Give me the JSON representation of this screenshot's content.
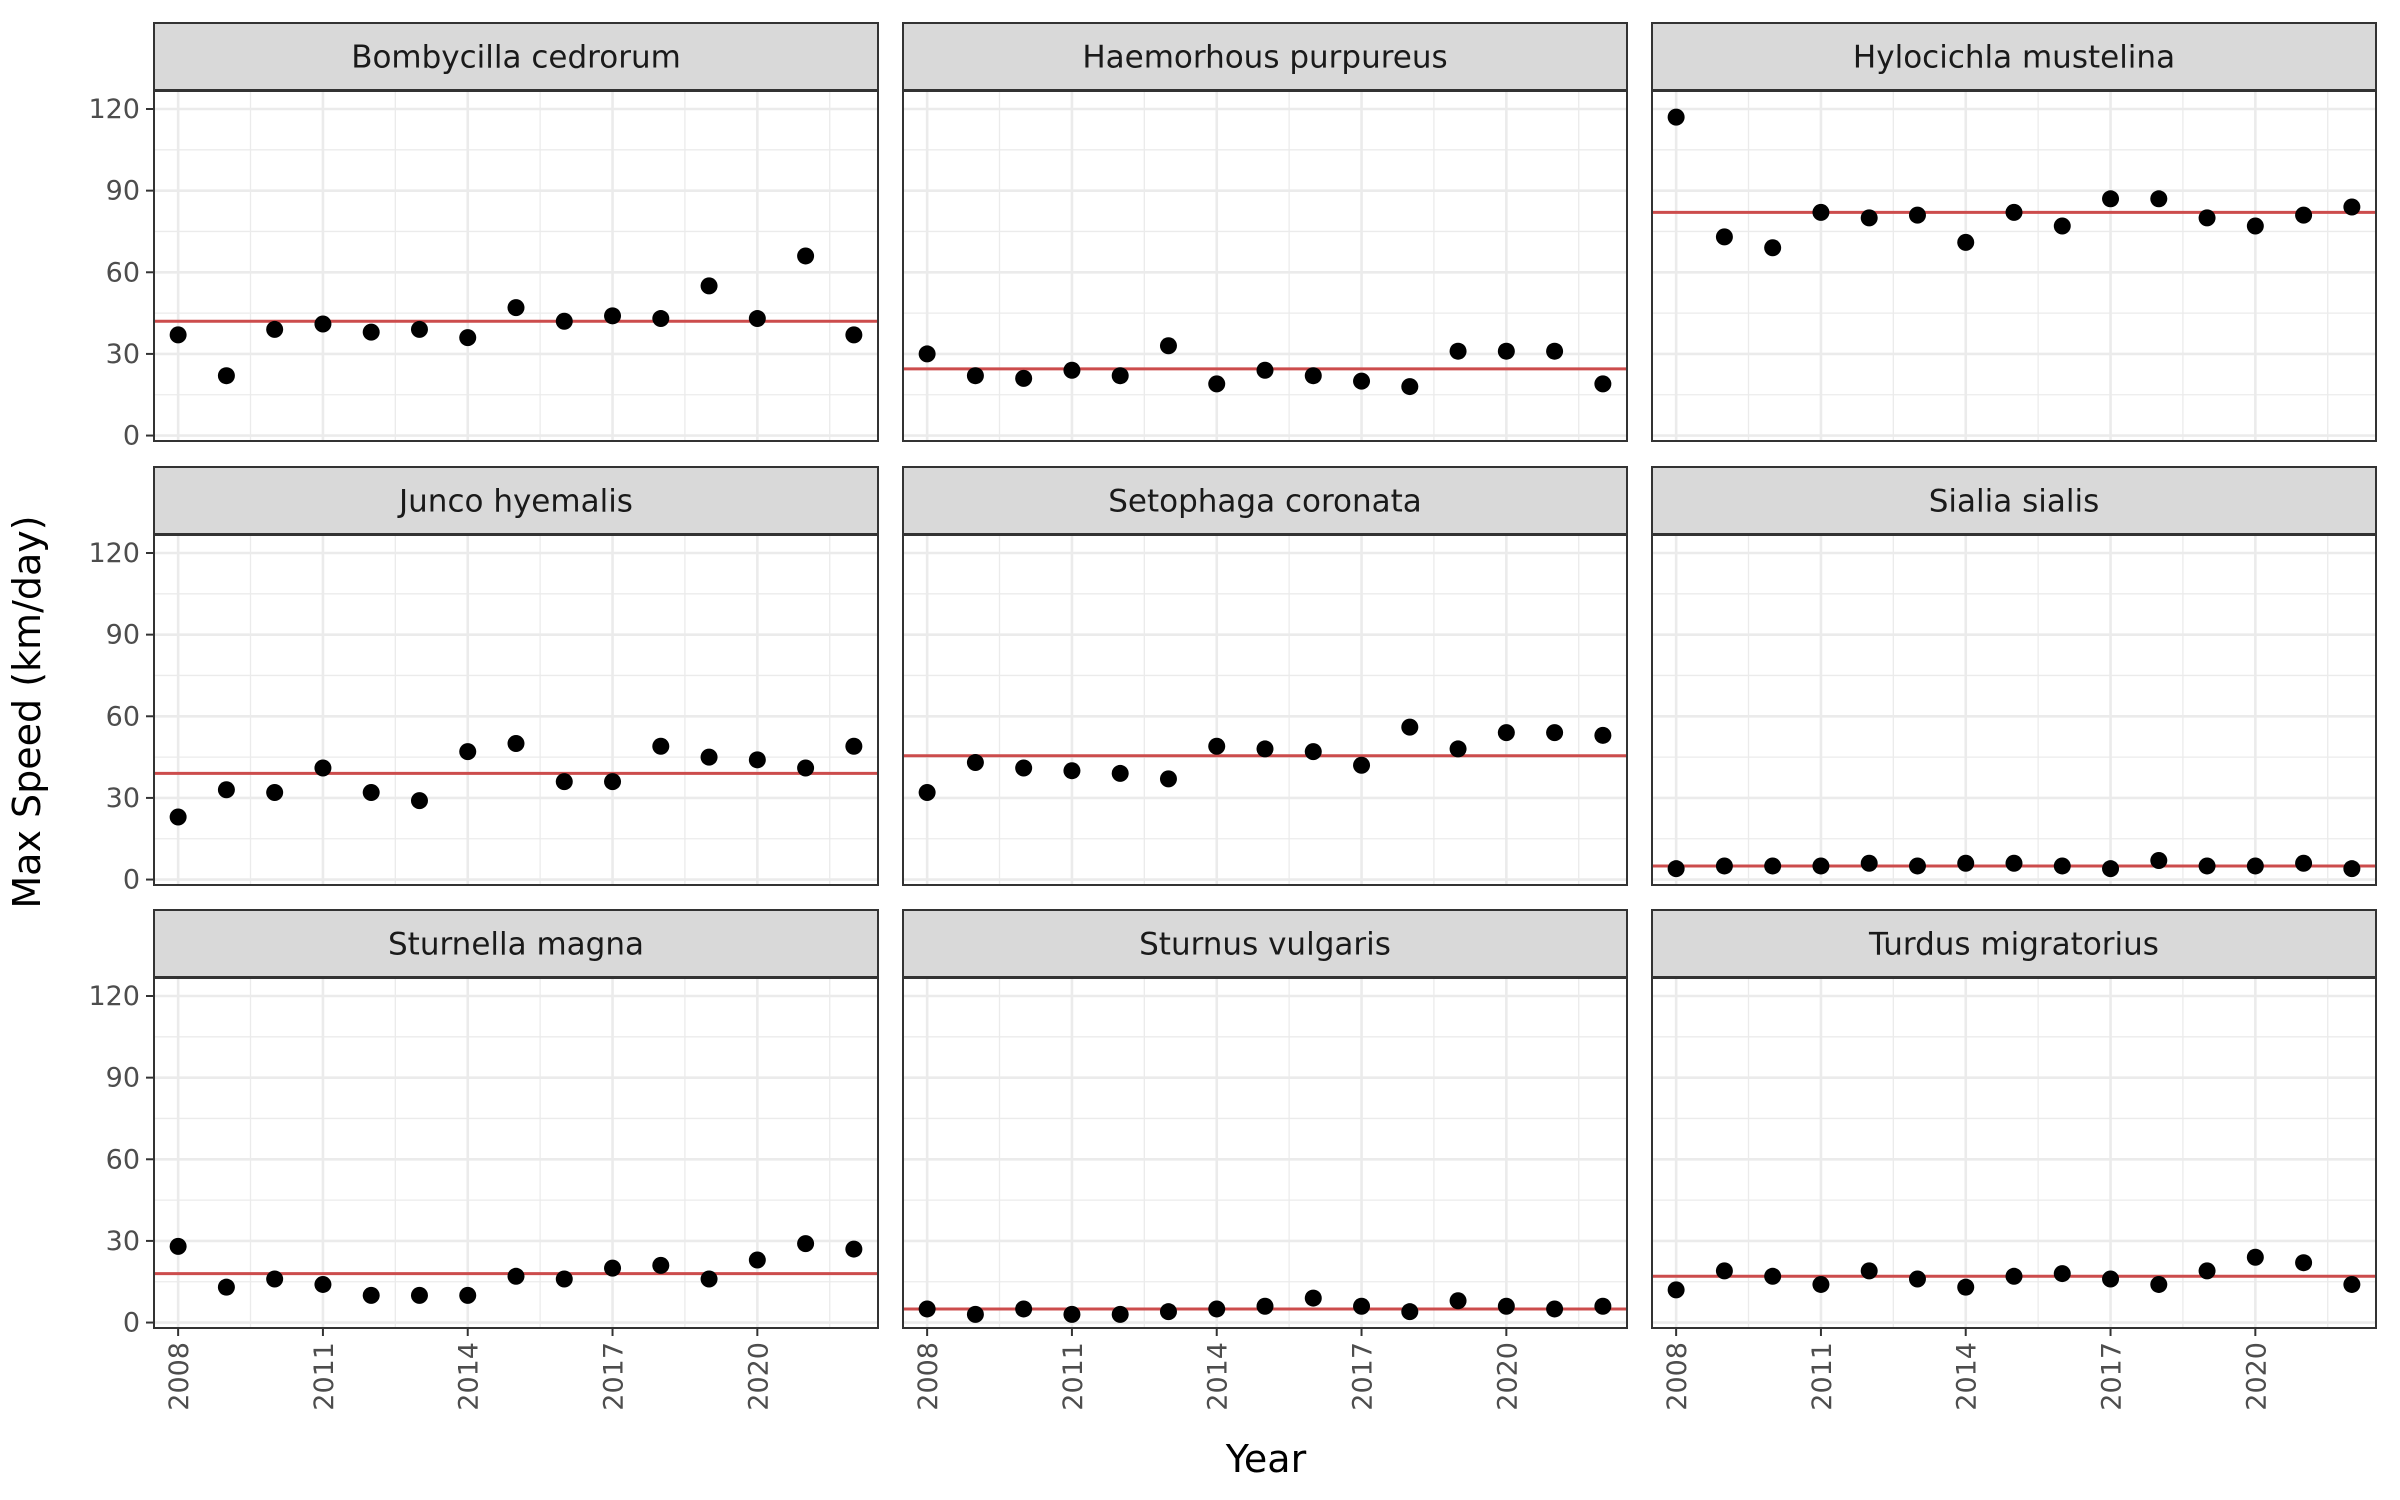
{
  "chart_data": {
    "type": "scatter",
    "title": "",
    "xlabel": "Year",
    "ylabel": "Max Speed (km/day)",
    "xlim": [
      2007.5,
      2022.5
    ],
    "ylim": [
      -2,
      120
    ],
    "x_ticks": [
      2008,
      2011,
      2014,
      2017,
      2020
    ],
    "y_ticks": [
      0,
      30,
      60,
      90,
      120
    ],
    "grid": true,
    "facet_layout": "3x3",
    "x": [
      2008,
      2009,
      2010,
      2011,
      2012,
      2013,
      2014,
      2015,
      2016,
      2017,
      2018,
      2019,
      2020,
      2021,
      2022
    ],
    "colors": {
      "points": "#000000",
      "mean_line": "#CC4C4C",
      "strip_bg": "#D9D9D9",
      "grid": "#EBEBEB",
      "border": "#333333"
    },
    "facets": [
      {
        "name": "Bombycilla cedrorum",
        "values": [
          37,
          22,
          39,
          41,
          38,
          39,
          36,
          47,
          42,
          44,
          43,
          55,
          43,
          66,
          37
        ],
        "mean": 42
      },
      {
        "name": "Haemorhous purpureus",
        "values": [
          30,
          22,
          21,
          24,
          22,
          33,
          19,
          24,
          22,
          20,
          18,
          31,
          31,
          31,
          19
        ],
        "mean": 24.5
      },
      {
        "name": "Hylocichla mustelina",
        "values": [
          117,
          73,
          69,
          82,
          80,
          81,
          71,
          82,
          77,
          87,
          87,
          80,
          77,
          81,
          84
        ],
        "mean": 82
      },
      {
        "name": "Junco hyemalis",
        "values": [
          23,
          33,
          32,
          41,
          32,
          29,
          47,
          50,
          36,
          36,
          49,
          45,
          44,
          41,
          49
        ],
        "mean": 39
      },
      {
        "name": "Setophaga coronata",
        "values": [
          32,
          43,
          41,
          40,
          39,
          37,
          49,
          48,
          47,
          42,
          56,
          48,
          54,
          54,
          53
        ],
        "mean": 45.5
      },
      {
        "name": "Sialia sialis",
        "values": [
          4,
          5,
          5,
          5,
          6,
          5,
          6,
          6,
          5,
          4,
          7,
          5,
          5,
          6,
          4
        ],
        "mean": 5
      },
      {
        "name": "Sturnella magna",
        "values": [
          28,
          13,
          16,
          14,
          10,
          10,
          10,
          17,
          16,
          20,
          21,
          16,
          23,
          29,
          27
        ],
        "mean": 18
      },
      {
        "name": "Sturnus vulgaris",
        "values": [
          5,
          3,
          5,
          3,
          3,
          4,
          5,
          6,
          9,
          6,
          4,
          8,
          6,
          5,
          6
        ],
        "mean": 5
      },
      {
        "name": "Turdus migratorius",
        "values": [
          12,
          19,
          17,
          14,
          19,
          16,
          13,
          17,
          18,
          16,
          14,
          19,
          24,
          22,
          14
        ],
        "mean": 17
      }
    ]
  }
}
